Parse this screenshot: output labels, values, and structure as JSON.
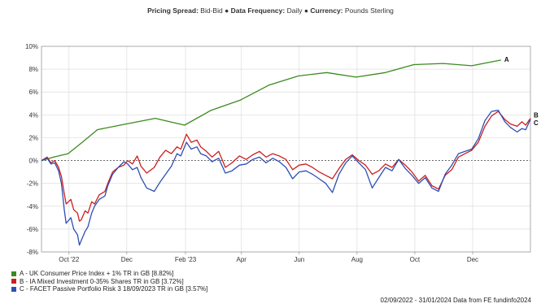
{
  "header": {
    "pricing_label": "Pricing Spread:",
    "pricing_value": "Bid-Bid",
    "frequency_label": "Data Frequency:",
    "frequency_value": "Daily",
    "currency_label": "Currency:",
    "currency_value": "Pounds Sterling"
  },
  "footer": {
    "text": "02/09/2022 - 31/01/2024 Data from FE fundinfo2024"
  },
  "chart_data": {
    "type": "line",
    "x_range": [
      "2022-09-02",
      "2024-01-31"
    ],
    "ylim": [
      -8,
      10
    ],
    "y_ticks": [
      {
        "value": 10,
        "label": "10%"
      },
      {
        "value": 8,
        "label": "8%"
      },
      {
        "value": 6,
        "label": "6%"
      },
      {
        "value": 4,
        "label": "4%"
      },
      {
        "value": 2,
        "label": "2%"
      },
      {
        "value": 0,
        "label": "0%"
      },
      {
        "value": -2,
        "label": "-2%"
      },
      {
        "value": -4,
        "label": "-4%"
      },
      {
        "value": -6,
        "label": "-6%"
      },
      {
        "value": -8,
        "label": "-8%"
      }
    ],
    "x_ticks": [
      {
        "date": "2022-10-01",
        "label": "Oct '22"
      },
      {
        "date": "2022-12-01",
        "label": "Dec"
      },
      {
        "date": "2023-02-01",
        "label": "Feb '23"
      },
      {
        "date": "2023-04-01",
        "label": "Apr"
      },
      {
        "date": "2023-06-01",
        "label": "Jun"
      },
      {
        "date": "2023-08-01",
        "label": "Aug"
      },
      {
        "date": "2023-10-01",
        "label": "Oct"
      },
      {
        "date": "2023-12-01",
        "label": "Dec"
      }
    ],
    "grid": true,
    "legend_position": "bottom-left",
    "series": [
      {
        "legend": "A - UK Consumer Price Index + 1% TR in GB [8.82%]",
        "end_label": "A",
        "color": "#3a8a1e",
        "points": [
          [
            "2022-09-02",
            0.0
          ],
          [
            "2022-09-15",
            0.3
          ],
          [
            "2022-09-30",
            0.6
          ],
          [
            "2022-10-15",
            1.6
          ],
          [
            "2022-10-31",
            2.7
          ],
          [
            "2022-11-30",
            3.2
          ],
          [
            "2022-12-31",
            3.7
          ],
          [
            "2023-01-31",
            3.1
          ],
          [
            "2023-02-28",
            4.4
          ],
          [
            "2023-03-31",
            5.3
          ],
          [
            "2023-04-30",
            6.6
          ],
          [
            "2023-05-31",
            7.4
          ],
          [
            "2023-06-30",
            7.7
          ],
          [
            "2023-07-31",
            7.3
          ],
          [
            "2023-08-31",
            7.7
          ],
          [
            "2023-09-30",
            8.4
          ],
          [
            "2023-10-31",
            8.5
          ],
          [
            "2023-11-30",
            8.3
          ],
          [
            "2023-12-31",
            8.8
          ]
        ]
      },
      {
        "legend": "B - IA Mixed Investment 0-35% Shares TR in GB [3.72%]",
        "end_label": "B",
        "color": "#cc1f1f",
        "points": [
          [
            "2022-09-02",
            0.0
          ],
          [
            "2022-09-08",
            0.3
          ],
          [
            "2022-09-12",
            -0.2
          ],
          [
            "2022-09-16",
            0.0
          ],
          [
            "2022-09-20",
            -0.6
          ],
          [
            "2022-09-23",
            -1.4
          ],
          [
            "2022-09-26",
            -2.9
          ],
          [
            "2022-09-28",
            -3.8
          ],
          [
            "2022-10-03",
            -3.4
          ],
          [
            "2022-10-06",
            -4.3
          ],
          [
            "2022-10-10",
            -4.6
          ],
          [
            "2022-10-12",
            -5.3
          ],
          [
            "2022-10-14",
            -5.2
          ],
          [
            "2022-10-18",
            -4.4
          ],
          [
            "2022-10-21",
            -4.6
          ],
          [
            "2022-10-25",
            -3.6
          ],
          [
            "2022-10-28",
            -3.8
          ],
          [
            "2022-11-02",
            -3.0
          ],
          [
            "2022-11-08",
            -2.7
          ],
          [
            "2022-11-11",
            -2.0
          ],
          [
            "2022-11-16",
            -1.0
          ],
          [
            "2022-11-22",
            -0.6
          ],
          [
            "2022-11-28",
            -0.4
          ],
          [
            "2022-12-02",
            0.0
          ],
          [
            "2022-12-07",
            -0.3
          ],
          [
            "2022-12-12",
            0.4
          ],
          [
            "2022-12-16",
            -0.5
          ],
          [
            "2022-12-22",
            -1.1
          ],
          [
            "2022-12-30",
            -0.6
          ],
          [
            "2023-01-05",
            0.3
          ],
          [
            "2023-01-11",
            0.9
          ],
          [
            "2023-01-17",
            0.6
          ],
          [
            "2023-01-23",
            1.2
          ],
          [
            "2023-01-27",
            1.0
          ],
          [
            "2023-02-02",
            2.3
          ],
          [
            "2023-02-07",
            1.6
          ],
          [
            "2023-02-13",
            1.8
          ],
          [
            "2023-02-17",
            1.2
          ],
          [
            "2023-02-23",
            0.8
          ],
          [
            "2023-03-01",
            0.3
          ],
          [
            "2023-03-08",
            0.8
          ],
          [
            "2023-03-15",
            -0.6
          ],
          [
            "2023-03-22",
            -0.2
          ],
          [
            "2023-03-30",
            0.4
          ],
          [
            "2023-04-06",
            0.1
          ],
          [
            "2023-04-13",
            0.5
          ],
          [
            "2023-04-20",
            0.8
          ],
          [
            "2023-04-27",
            0.3
          ],
          [
            "2023-05-04",
            0.6
          ],
          [
            "2023-05-11",
            0.4
          ],
          [
            "2023-05-18",
            0.1
          ],
          [
            "2023-05-25",
            -0.8
          ],
          [
            "2023-06-01",
            -0.4
          ],
          [
            "2023-06-08",
            -0.3
          ],
          [
            "2023-06-15",
            -0.6
          ],
          [
            "2023-06-22",
            -1.0
          ],
          [
            "2023-06-29",
            -1.3
          ],
          [
            "2023-07-06",
            -1.6
          ],
          [
            "2023-07-13",
            -0.7
          ],
          [
            "2023-07-20",
            0.1
          ],
          [
            "2023-07-27",
            0.5
          ],
          [
            "2023-08-03",
            0.0
          ],
          [
            "2023-08-10",
            -0.4
          ],
          [
            "2023-08-17",
            -1.2
          ],
          [
            "2023-08-24",
            -0.9
          ],
          [
            "2023-08-31",
            -0.3
          ],
          [
            "2023-09-07",
            -0.6
          ],
          [
            "2023-09-14",
            0.1
          ],
          [
            "2023-09-21",
            -0.4
          ],
          [
            "2023-09-28",
            -1.0
          ],
          [
            "2023-10-05",
            -1.8
          ],
          [
            "2023-10-12",
            -1.3
          ],
          [
            "2023-10-19",
            -2.2
          ],
          [
            "2023-10-26",
            -2.5
          ],
          [
            "2023-11-02",
            -1.3
          ],
          [
            "2023-11-09",
            -0.8
          ],
          [
            "2023-11-16",
            0.3
          ],
          [
            "2023-11-23",
            0.6
          ],
          [
            "2023-11-30",
            0.9
          ],
          [
            "2023-12-07",
            1.6
          ],
          [
            "2023-12-14",
            3.0
          ],
          [
            "2023-12-21",
            3.9
          ],
          [
            "2023-12-28",
            4.3
          ],
          [
            "2024-01-04",
            3.6
          ],
          [
            "2024-01-10",
            3.2
          ],
          [
            "2024-01-17",
            3.0
          ],
          [
            "2024-01-22",
            3.4
          ],
          [
            "2024-01-26",
            3.1
          ],
          [
            "2024-01-31",
            3.7
          ]
        ]
      },
      {
        "legend": "C - FACET Passive Portfolio Risk 3 18/09/2023 TR in GB [3.57%]",
        "end_label": "C",
        "color": "#2d4fb5",
        "points": [
          [
            "2022-09-02",
            0.0
          ],
          [
            "2022-09-08",
            0.2
          ],
          [
            "2022-09-12",
            -0.3
          ],
          [
            "2022-09-16",
            -0.2
          ],
          [
            "2022-09-20",
            -0.9
          ],
          [
            "2022-09-23",
            -2.0
          ],
          [
            "2022-09-26",
            -4.3
          ],
          [
            "2022-09-28",
            -5.5
          ],
          [
            "2022-10-03",
            -5.0
          ],
          [
            "2022-10-06",
            -6.0
          ],
          [
            "2022-10-10",
            -6.5
          ],
          [
            "2022-10-12",
            -7.4
          ],
          [
            "2022-10-14",
            -7.0
          ],
          [
            "2022-10-18",
            -6.2
          ],
          [
            "2022-10-21",
            -5.8
          ],
          [
            "2022-10-25",
            -4.6
          ],
          [
            "2022-10-28",
            -4.0
          ],
          [
            "2022-11-02",
            -3.4
          ],
          [
            "2022-11-08",
            -3.1
          ],
          [
            "2022-11-11",
            -2.2
          ],
          [
            "2022-11-16",
            -1.2
          ],
          [
            "2022-11-22",
            -0.6
          ],
          [
            "2022-11-28",
            -0.1
          ],
          [
            "2022-12-02",
            -0.3
          ],
          [
            "2022-12-07",
            -0.8
          ],
          [
            "2022-12-12",
            -0.6
          ],
          [
            "2022-12-16",
            -1.5
          ],
          [
            "2022-12-22",
            -2.4
          ],
          [
            "2022-12-30",
            -2.7
          ],
          [
            "2023-01-05",
            -1.9
          ],
          [
            "2023-01-11",
            -1.2
          ],
          [
            "2023-01-17",
            -0.5
          ],
          [
            "2023-01-23",
            0.6
          ],
          [
            "2023-01-27",
            0.4
          ],
          [
            "2023-02-02",
            1.6
          ],
          [
            "2023-02-07",
            1.0
          ],
          [
            "2023-02-13",
            1.2
          ],
          [
            "2023-02-17",
            0.6
          ],
          [
            "2023-02-23",
            0.4
          ],
          [
            "2023-03-01",
            -0.1
          ],
          [
            "2023-03-08",
            0.2
          ],
          [
            "2023-03-15",
            -1.1
          ],
          [
            "2023-03-22",
            -0.9
          ],
          [
            "2023-03-30",
            -0.4
          ],
          [
            "2023-04-06",
            -0.3
          ],
          [
            "2023-04-13",
            0.1
          ],
          [
            "2023-04-20",
            0.3
          ],
          [
            "2023-04-27",
            -0.2
          ],
          [
            "2023-05-04",
            0.2
          ],
          [
            "2023-05-11",
            -0.1
          ],
          [
            "2023-05-18",
            -0.6
          ],
          [
            "2023-05-25",
            -1.6
          ],
          [
            "2023-06-01",
            -1.0
          ],
          [
            "2023-06-08",
            -0.9
          ],
          [
            "2023-06-15",
            -1.2
          ],
          [
            "2023-06-22",
            -1.6
          ],
          [
            "2023-06-29",
            -2.0
          ],
          [
            "2023-07-06",
            -2.8
          ],
          [
            "2023-07-13",
            -1.2
          ],
          [
            "2023-07-20",
            -0.2
          ],
          [
            "2023-07-27",
            0.4
          ],
          [
            "2023-08-03",
            -0.2
          ],
          [
            "2023-08-10",
            -0.8
          ],
          [
            "2023-08-17",
            -2.4
          ],
          [
            "2023-08-24",
            -1.5
          ],
          [
            "2023-08-31",
            -0.6
          ],
          [
            "2023-09-07",
            -0.9
          ],
          [
            "2023-09-14",
            0.1
          ],
          [
            "2023-09-21",
            -0.7
          ],
          [
            "2023-09-28",
            -1.3
          ],
          [
            "2023-10-05",
            -2.0
          ],
          [
            "2023-10-12",
            -1.5
          ],
          [
            "2023-10-19",
            -2.4
          ],
          [
            "2023-10-26",
            -2.7
          ],
          [
            "2023-11-02",
            -1.2
          ],
          [
            "2023-11-09",
            -0.4
          ],
          [
            "2023-11-16",
            0.6
          ],
          [
            "2023-11-23",
            0.8
          ],
          [
            "2023-11-30",
            1.0
          ],
          [
            "2023-12-07",
            1.9
          ],
          [
            "2023-12-14",
            3.5
          ],
          [
            "2023-12-21",
            4.3
          ],
          [
            "2023-12-28",
            4.4
          ],
          [
            "2024-01-04",
            3.4
          ],
          [
            "2024-01-10",
            2.9
          ],
          [
            "2024-01-17",
            2.5
          ],
          [
            "2024-01-22",
            2.8
          ],
          [
            "2024-01-26",
            2.7
          ],
          [
            "2024-01-31",
            3.6
          ]
        ]
      }
    ]
  }
}
